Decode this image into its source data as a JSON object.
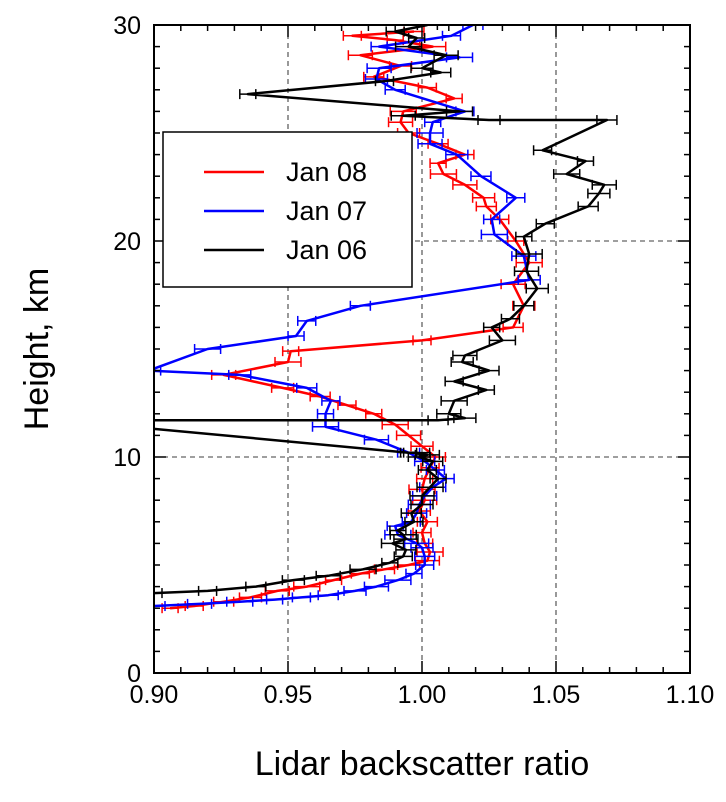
{
  "chart_data": {
    "type": "line",
    "title": "",
    "xlabel": "Lidar backscatter ratio",
    "ylabel": "Height, km",
    "xlim": [
      0.9,
      1.1
    ],
    "ylim": [
      0,
      30
    ],
    "xticks": [
      "0.90",
      "0.95",
      "1.00",
      "1.05",
      "1.10"
    ],
    "yticks": [
      "0",
      "10",
      "20",
      "30"
    ],
    "grid": true,
    "grid_style": "dashed",
    "legend_position": "left",
    "series": [
      {
        "name": "Jan 08",
        "color": "#ff0000",
        "x": [
          0.906,
          0.915,
          0.926,
          0.936,
          0.946,
          0.957,
          0.967,
          0.977,
          0.986,
          0.995,
          1.002,
          1.003,
          1.001,
          1.0,
          1.002,
          0.999,
          1.001,
          1.0,
          1.001,
          1.003,
          1.005,
          1.0,
          0.995,
          0.99,
          0.982,
          0.972,
          0.962,
          0.948,
          0.926,
          0.95,
          0.951,
          1.0,
          1.034,
          1.038,
          1.034,
          1.04,
          1.035,
          1.029,
          1.024,
          1.023,
          1.016,
          1.008,
          1.006,
          1.016,
          1.006,
          0.995,
          0.992,
          0.993,
          1.012,
          1.002,
          0.982,
          0.992,
          0.977,
          1.004,
          0.99,
          0.974,
          0.997
        ],
        "y": [
          3.0,
          3.1,
          3.3,
          3.5,
          3.8,
          4.0,
          4.3,
          4.6,
          4.8,
          5.0,
          5.2,
          5.6,
          6.0,
          6.5,
          7.0,
          7.5,
          8.0,
          8.5,
          9.0,
          9.5,
          10.0,
          10.5,
          11.0,
          11.5,
          12.0,
          12.4,
          12.8,
          13.2,
          13.8,
          14.4,
          14.9,
          15.4,
          16.0,
          17.0,
          18.0,
          19.0,
          20.0,
          21.0,
          21.6,
          22.0,
          22.6,
          23.1,
          23.6,
          24.0,
          24.5,
          25.0,
          25.5,
          26.0,
          26.6,
          27.1,
          27.6,
          28.1,
          28.6,
          29.0,
          29.3,
          29.5,
          29.7
        ]
      },
      {
        "name": "Jan 07",
        "color": "#0000ff",
        "x": [
          0.9,
          0.917,
          0.932,
          0.945,
          0.955,
          0.965,
          0.975,
          0.983,
          0.991,
          0.997,
          1.001,
          1.001,
          1.0,
          0.998,
          0.991,
          0.99,
          0.996,
          0.998,
          0.999,
          1.001,
          1.004,
          1.009,
          1.005,
          1.001,
          0.995,
          0.983,
          0.964,
          0.964,
          0.966,
          0.957,
          0.932,
          0.898,
          0.92,
          0.953,
          0.957,
          0.977,
          1.04,
          1.038,
          1.027,
          1.026,
          1.035,
          1.022,
          1.013,
          1.003,
          1.003,
          1.004,
          1.016,
          0.99,
          0.983,
          0.984,
          1.014,
          0.984,
          1.011,
          1.019
        ],
        "y": [
          3.1,
          3.2,
          3.3,
          3.4,
          3.5,
          3.6,
          3.8,
          4.0,
          4.3,
          4.6,
          5.0,
          5.4,
          5.8,
          6.0,
          6.4,
          6.8,
          7.0,
          7.4,
          7.8,
          8.2,
          8.6,
          9.0,
          9.4,
          9.8,
          10.2,
          10.8,
          11.4,
          12.0,
          12.6,
          13.2,
          13.8,
          14.0,
          15.0,
          15.6,
          16.3,
          17.0,
          18.2,
          19.3,
          20.3,
          21.0,
          22.0,
          23.0,
          24.0,
          24.5,
          25.0,
          25.5,
          26.0,
          27.0,
          27.5,
          28.0,
          28.5,
          29.0,
          29.5,
          30.0
        ]
      },
      {
        "name": "Jan 06",
        "color": "#000000",
        "x": [
          0.9,
          0.92,
          0.938,
          0.952,
          0.965,
          0.978,
          0.988,
          0.993,
          0.994,
          0.989,
          0.994,
          0.993,
          0.991,
          0.997,
          0.996,
          1.0,
          1.0,
          1.003,
          1.006,
          1.002,
          1.004,
          0.999,
          1.002,
          0.998,
          0.995,
          0.866,
          1.006,
          1.016,
          1.01,
          1.012,
          1.024,
          1.012,
          1.025,
          1.015,
          1.016,
          1.03,
          1.026,
          1.033,
          1.038,
          1.043,
          1.039,
          1.04,
          1.038,
          1.046,
          1.062,
          1.066,
          1.068,
          1.054,
          1.061,
          1.045,
          1.069,
          1.025,
          0.993,
          1.014,
          0.935,
          0.986,
          1.007,
          1.0,
          1.009,
          0.995,
          0.998,
          0.99,
          1.002
        ],
        "y": [
          3.7,
          3.8,
          4.0,
          4.3,
          4.5,
          4.8,
          5.1,
          5.4,
          5.7,
          6.0,
          6.2,
          6.4,
          6.6,
          7.0,
          7.4,
          7.8,
          8.2,
          8.6,
          9.0,
          9.4,
          9.8,
          10.0,
          10.1,
          10.2,
          10.2,
          11.7,
          11.7,
          11.8,
          12.0,
          12.6,
          13.1,
          13.5,
          14.0,
          14.4,
          14.7,
          15.4,
          16.0,
          16.4,
          17.0,
          17.8,
          18.6,
          19.4,
          20.2,
          20.8,
          21.6,
          22.2,
          22.6,
          23.1,
          23.7,
          24.2,
          25.6,
          25.6,
          25.8,
          26.0,
          26.8,
          27.4,
          27.8,
          28.0,
          28.6,
          29.0,
          29.4,
          29.7,
          30.0
        ]
      }
    ]
  }
}
